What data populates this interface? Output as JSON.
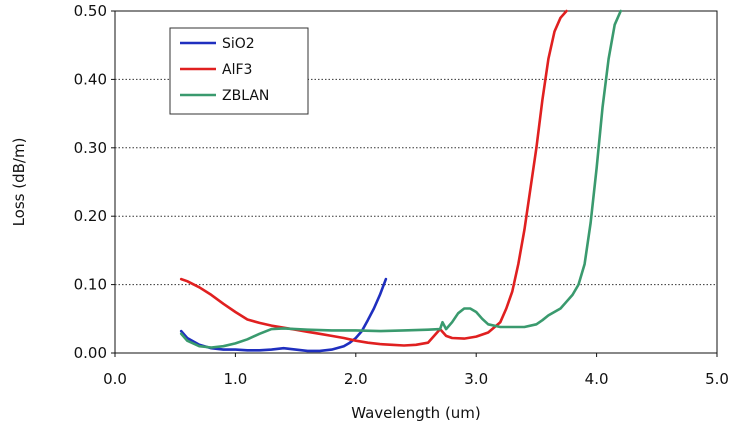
{
  "chart_data": {
    "type": "line",
    "title": "",
    "xlabel": "Wavelength (um)",
    "ylabel": "Loss (dB/m)",
    "xlim": [
      0,
      5
    ],
    "ylim": [
      0,
      0.5
    ],
    "x_ticks": [
      "0.0",
      "1.0",
      "2.0",
      "3.0",
      "4.0",
      "5.0"
    ],
    "y_ticks": [
      "0.00",
      "0.10",
      "0.20",
      "0.30",
      "0.40",
      "0.50"
    ],
    "grid": "horizontal dotted",
    "legend_position": "top-left",
    "series": [
      {
        "name": "SiO2",
        "color": "#1f2fbf",
        "points": [
          [
            0.55,
            0.032
          ],
          [
            0.6,
            0.022
          ],
          [
            0.7,
            0.012
          ],
          [
            0.8,
            0.007
          ],
          [
            0.9,
            0.005
          ],
          [
            1.0,
            0.005
          ],
          [
            1.1,
            0.004
          ],
          [
            1.2,
            0.004
          ],
          [
            1.3,
            0.005
          ],
          [
            1.4,
            0.007
          ],
          [
            1.5,
            0.005
          ],
          [
            1.6,
            0.003
          ],
          [
            1.7,
            0.003
          ],
          [
            1.8,
            0.005
          ],
          [
            1.9,
            0.01
          ],
          [
            1.95,
            0.015
          ],
          [
            2.0,
            0.022
          ],
          [
            2.05,
            0.032
          ],
          [
            2.1,
            0.048
          ],
          [
            2.15,
            0.065
          ],
          [
            2.2,
            0.085
          ],
          [
            2.25,
            0.108
          ]
        ]
      },
      {
        "name": "AlF3",
        "color": "#e02020",
        "points": [
          [
            0.55,
            0.108
          ],
          [
            0.6,
            0.105
          ],
          [
            0.7,
            0.096
          ],
          [
            0.8,
            0.085
          ],
          [
            0.9,
            0.072
          ],
          [
            1.0,
            0.06
          ],
          [
            1.1,
            0.049
          ],
          [
            1.2,
            0.044
          ],
          [
            1.3,
            0.04
          ],
          [
            1.4,
            0.037
          ],
          [
            1.5,
            0.034
          ],
          [
            1.6,
            0.031
          ],
          [
            1.7,
            0.028
          ],
          [
            1.8,
            0.025
          ],
          [
            1.9,
            0.022
          ],
          [
            2.0,
            0.018
          ],
          [
            2.1,
            0.015
          ],
          [
            2.2,
            0.013
          ],
          [
            2.3,
            0.012
          ],
          [
            2.4,
            0.011
          ],
          [
            2.5,
            0.012
          ],
          [
            2.6,
            0.015
          ],
          [
            2.65,
            0.025
          ],
          [
            2.7,
            0.035
          ],
          [
            2.75,
            0.025
          ],
          [
            2.8,
            0.022
          ],
          [
            2.9,
            0.021
          ],
          [
            3.0,
            0.024
          ],
          [
            3.1,
            0.03
          ],
          [
            3.2,
            0.045
          ],
          [
            3.25,
            0.065
          ],
          [
            3.3,
            0.09
          ],
          [
            3.35,
            0.13
          ],
          [
            3.4,
            0.18
          ],
          [
            3.45,
            0.24
          ],
          [
            3.5,
            0.3
          ],
          [
            3.55,
            0.37
          ],
          [
            3.6,
            0.43
          ],
          [
            3.65,
            0.47
          ],
          [
            3.7,
            0.49
          ],
          [
            3.75,
            0.5
          ]
        ]
      },
      {
        "name": "ZBLAN",
        "color": "#3a9a6e",
        "points": [
          [
            0.55,
            0.028
          ],
          [
            0.6,
            0.018
          ],
          [
            0.7,
            0.01
          ],
          [
            0.8,
            0.008
          ],
          [
            0.9,
            0.01
          ],
          [
            1.0,
            0.014
          ],
          [
            1.1,
            0.02
          ],
          [
            1.2,
            0.028
          ],
          [
            1.3,
            0.035
          ],
          [
            1.4,
            0.036
          ],
          [
            1.5,
            0.035
          ],
          [
            1.6,
            0.034
          ],
          [
            1.8,
            0.033
          ],
          [
            2.0,
            0.033
          ],
          [
            2.2,
            0.032
          ],
          [
            2.4,
            0.033
          ],
          [
            2.6,
            0.034
          ],
          [
            2.7,
            0.035
          ],
          [
            2.72,
            0.045
          ],
          [
            2.75,
            0.035
          ],
          [
            2.8,
            0.045
          ],
          [
            2.85,
            0.058
          ],
          [
            2.9,
            0.065
          ],
          [
            2.95,
            0.065
          ],
          [
            3.0,
            0.06
          ],
          [
            3.05,
            0.05
          ],
          [
            3.1,
            0.042
          ],
          [
            3.2,
            0.038
          ],
          [
            3.4,
            0.038
          ],
          [
            3.5,
            0.042
          ],
          [
            3.55,
            0.048
          ],
          [
            3.6,
            0.055
          ],
          [
            3.7,
            0.065
          ],
          [
            3.75,
            0.075
          ],
          [
            3.8,
            0.085
          ],
          [
            3.85,
            0.1
          ],
          [
            3.9,
            0.13
          ],
          [
            3.95,
            0.19
          ],
          [
            4.0,
            0.27
          ],
          [
            4.05,
            0.36
          ],
          [
            4.1,
            0.43
          ],
          [
            4.15,
            0.48
          ],
          [
            4.2,
            0.5
          ]
        ]
      }
    ]
  }
}
